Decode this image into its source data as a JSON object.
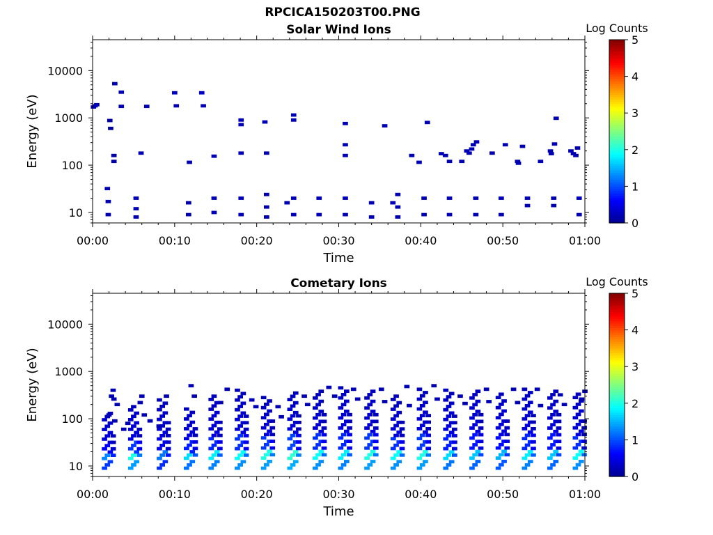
{
  "figure": {
    "filename": "RPCICA150203T00.PNG"
  },
  "colorbar_colors": [
    "#00008f",
    "#0000ff",
    "#0080ff",
    "#00ffff",
    "#80ff80",
    "#ffff00",
    "#ff8000",
    "#ff0000",
    "#800000"
  ],
  "chart_data": [
    {
      "type": "heatmap",
      "title": "Solar Wind Ions",
      "xlabel": "Time",
      "ylabel": "Energy (eV)",
      "xlim_minutes": [
        0,
        60
      ],
      "ylim_eV": [
        6,
        45000
      ],
      "y_scale": "log",
      "x_ticks": [
        {
          "value": 0,
          "label": "00:00"
        },
        {
          "value": 10,
          "label": "00:10"
        },
        {
          "value": 20,
          "label": "00:20"
        },
        {
          "value": 30,
          "label": "00:30"
        },
        {
          "value": 40,
          "label": "00:40"
        },
        {
          "value": 50,
          "label": "00:50"
        },
        {
          "value": 60,
          "label": "01:00"
        }
      ],
      "y_ticks": [
        {
          "value": 10,
          "label": "10"
        },
        {
          "value": 100,
          "label": "100"
        },
        {
          "value": 1000,
          "label": "1000"
        },
        {
          "value": 10000,
          "label": "10000"
        }
      ],
      "colorbar": {
        "label": "Log Counts",
        "min": 0,
        "max": 5,
        "ticks": [
          "0",
          "1",
          "2",
          "3",
          "4",
          "5"
        ]
      },
      "cells": [
        [
          0.1,
          1700,
          0.2
        ],
        [
          0.3,
          1800,
          0.2
        ],
        [
          0.5,
          1900,
          0.2
        ],
        [
          2.7,
          5300,
          0.2
        ],
        [
          3.5,
          3500,
          0.2
        ],
        [
          3.5,
          1750,
          0.2
        ],
        [
          6.6,
          1750,
          0.2
        ],
        [
          10.0,
          3400,
          0.3
        ],
        [
          10.2,
          1800,
          0.2
        ],
        [
          13.3,
          3400,
          0.3
        ],
        [
          13.5,
          1800,
          0.2
        ],
        [
          2.1,
          880,
          0.1
        ],
        [
          2.2,
          600,
          0.1
        ],
        [
          2.6,
          160,
          0.1
        ],
        [
          2.6,
          120,
          0.1
        ],
        [
          5.9,
          180,
          0.2
        ],
        [
          11.8,
          115,
          0.2
        ],
        [
          14.8,
          155,
          0.2
        ],
        [
          18.1,
          900,
          0.2
        ],
        [
          18.1,
          720,
          0.2
        ],
        [
          18.1,
          180,
          0.2
        ],
        [
          21.0,
          820,
          0.2
        ],
        [
          21.2,
          180,
          0.2
        ],
        [
          24.5,
          1150,
          0.2
        ],
        [
          24.5,
          900,
          0.2
        ],
        [
          30.8,
          760,
          0.2
        ],
        [
          30.8,
          270,
          0.2
        ],
        [
          30.8,
          160,
          0.2
        ],
        [
          35.6,
          680,
          0.2
        ],
        [
          38.9,
          160,
          0.2
        ],
        [
          39.8,
          115,
          0.2
        ],
        [
          40.8,
          800,
          0.2
        ],
        [
          42.5,
          175,
          0.2
        ],
        [
          43.0,
          160,
          0.2
        ],
        [
          43.5,
          120,
          0.2
        ],
        [
          45.0,
          120,
          0.2
        ],
        [
          45.6,
          200,
          0.2
        ],
        [
          45.9,
          180,
          0.2
        ],
        [
          46.2,
          220,
          0.2
        ],
        [
          46.4,
          270,
          0.2
        ],
        [
          46.8,
          310,
          0.2
        ],
        [
          48.7,
          180,
          0.2
        ],
        [
          50.3,
          270,
          0.2
        ],
        [
          51.8,
          120,
          0.2
        ],
        [
          51.9,
          110,
          0.2
        ],
        [
          52.4,
          250,
          0.2
        ],
        [
          54.6,
          120,
          0.2
        ],
        [
          55.8,
          200,
          0.2
        ],
        [
          55.9,
          175,
          0.2
        ],
        [
          56.3,
          280,
          0.2
        ],
        [
          56.5,
          980,
          0.2
        ],
        [
          58.3,
          200,
          0.2
        ],
        [
          58.6,
          175,
          0.2
        ],
        [
          58.9,
          160,
          0.2
        ],
        [
          59.1,
          230,
          0.2
        ],
        [
          1.8,
          32,
          0.2
        ],
        [
          1.9,
          17,
          0.2
        ],
        [
          1.9,
          9,
          0.2
        ],
        [
          5.3,
          20,
          0.2
        ],
        [
          5.3,
          12,
          0.2
        ],
        [
          5.3,
          8,
          0.2
        ],
        [
          11.7,
          16,
          0.2
        ],
        [
          11.7,
          9,
          0.2
        ],
        [
          14.8,
          20,
          0.2
        ],
        [
          14.8,
          10,
          0.2
        ],
        [
          18.1,
          20,
          0.2
        ],
        [
          18.1,
          9,
          0.2
        ],
        [
          21.2,
          24,
          0.2
        ],
        [
          21.2,
          13,
          0.2
        ],
        [
          21.2,
          8,
          0.2
        ],
        [
          23.7,
          16,
          0.2
        ],
        [
          24.5,
          20,
          0.2
        ],
        [
          24.5,
          9,
          0.2
        ],
        [
          27.6,
          20,
          0.2
        ],
        [
          27.6,
          9,
          0.2
        ],
        [
          30.8,
          20,
          0.2
        ],
        [
          30.8,
          9,
          0.2
        ],
        [
          34.0,
          16,
          0.2
        ],
        [
          34.0,
          8,
          0.2
        ],
        [
          36.6,
          16,
          0.2
        ],
        [
          37.2,
          24,
          0.2
        ],
        [
          37.2,
          13,
          0.2
        ],
        [
          37.2,
          8,
          0.2
        ],
        [
          40.4,
          20,
          0.2
        ],
        [
          40.4,
          9,
          0.2
        ],
        [
          43.5,
          20,
          0.2
        ],
        [
          43.5,
          9,
          0.2
        ],
        [
          46.7,
          20,
          0.2
        ],
        [
          46.7,
          9,
          0.2
        ],
        [
          49.8,
          20,
          0.2
        ],
        [
          49.8,
          9,
          0.2
        ],
        [
          53.0,
          20,
          0.2
        ],
        [
          53.0,
          14,
          0.2
        ],
        [
          56.2,
          20,
          0.2
        ],
        [
          56.2,
          14,
          0.2
        ],
        [
          59.3,
          20,
          0.2
        ],
        [
          59.3,
          9,
          0.2
        ]
      ]
    },
    {
      "type": "heatmap",
      "title": "Cometary Ions",
      "xlabel": "Time",
      "ylabel": "Energy (eV)",
      "xlim_minutes": [
        0,
        60
      ],
      "ylim_eV": [
        6,
        45000
      ],
      "y_scale": "log",
      "x_ticks": [
        {
          "value": 0,
          "label": "00:00"
        },
        {
          "value": 10,
          "label": "00:10"
        },
        {
          "value": 20,
          "label": "00:20"
        },
        {
          "value": 30,
          "label": "00:30"
        },
        {
          "value": 40,
          "label": "00:40"
        },
        {
          "value": 50,
          "label": "00:50"
        },
        {
          "value": 60,
          "label": "01:00"
        }
      ],
      "y_ticks": [
        {
          "value": 10,
          "label": "10"
        },
        {
          "value": 100,
          "label": "100"
        },
        {
          "value": 1000,
          "label": "1000"
        },
        {
          "value": 10000,
          "label": "10000"
        }
      ],
      "colorbar": {
        "label": "Log Counts",
        "min": 0,
        "max": 5,
        "ticks": [
          "0",
          "1",
          "2",
          "3",
          "4",
          "5"
        ]
      },
      "bursts": [
        {
          "t": 1.8,
          "top": 130,
          "peak": 1.3
        },
        {
          "t": 5.0,
          "top": 180,
          "peak": 2.0
        },
        {
          "t": 8.5,
          "top": 250,
          "peak": 1.2
        },
        {
          "t": 11.8,
          "top": 160,
          "peak": 1.7
        },
        {
          "t": 14.8,
          "top": 300,
          "peak": 1.8
        },
        {
          "t": 18.0,
          "top": 400,
          "peak": 1.9
        },
        {
          "t": 21.2,
          "top": 280,
          "peak": 2.0
        },
        {
          "t": 24.4,
          "top": 350,
          "peak": 2.1
        },
        {
          "t": 27.5,
          "top": 380,
          "peak": 1.9
        },
        {
          "t": 30.6,
          "top": 450,
          "peak": 1.8
        },
        {
          "t": 33.8,
          "top": 380,
          "peak": 2.0
        },
        {
          "t": 37.0,
          "top": 300,
          "peak": 1.9
        },
        {
          "t": 40.2,
          "top": 420,
          "peak": 2.0
        },
        {
          "t": 43.4,
          "top": 400,
          "peak": 1.7
        },
        {
          "t": 46.6,
          "top": 380,
          "peak": 1.6
        },
        {
          "t": 49.8,
          "top": 330,
          "peak": 1.5
        },
        {
          "t": 53.0,
          "top": 420,
          "peak": 1.8
        },
        {
          "t": 56.1,
          "top": 380,
          "peak": 1.6
        },
        {
          "t": 59.2,
          "top": 330,
          "peak": 1.9
        }
      ],
      "extra_cells": [
        [
          2.5,
          400,
          0.2
        ],
        [
          2.3,
          300,
          0.2
        ],
        [
          2.6,
          260,
          0.2
        ],
        [
          3.0,
          200,
          0.2
        ],
        [
          2.0,
          120,
          0.2
        ],
        [
          2.7,
          90,
          0.2
        ],
        [
          3.8,
          60,
          0.2
        ],
        [
          4.3,
          80,
          0.2
        ],
        [
          6.0,
          300,
          0.2
        ],
        [
          5.8,
          220,
          0.2
        ],
        [
          6.3,
          120,
          0.2
        ],
        [
          7.0,
          90,
          0.2
        ],
        [
          9.0,
          300,
          0.2
        ],
        [
          8.1,
          70,
          0.2
        ],
        [
          12.0,
          500,
          0.2
        ],
        [
          12.4,
          300,
          0.2
        ],
        [
          16.4,
          420,
          0.2
        ],
        [
          15.6,
          220,
          0.2
        ],
        [
          19.4,
          250,
          0.2
        ],
        [
          19.9,
          180,
          0.2
        ],
        [
          22.6,
          180,
          0.2
        ],
        [
          23.0,
          110,
          0.2
        ],
        [
          25.8,
          300,
          0.2
        ],
        [
          26.2,
          200,
          0.2
        ],
        [
          28.8,
          460,
          0.2
        ],
        [
          29.5,
          300,
          0.2
        ],
        [
          31.8,
          420,
          0.2
        ],
        [
          32.3,
          260,
          0.2
        ],
        [
          35.2,
          420,
          0.2
        ],
        [
          35.6,
          230,
          0.2
        ],
        [
          38.3,
          480,
          0.2
        ],
        [
          38.6,
          190,
          0.2
        ],
        [
          41.6,
          500,
          0.2
        ],
        [
          42.0,
          260,
          0.2
        ],
        [
          44.8,
          300,
          0.2
        ],
        [
          45.4,
          210,
          0.2
        ],
        [
          48.0,
          420,
          0.2
        ],
        [
          48.3,
          230,
          0.2
        ],
        [
          51.3,
          420,
          0.2
        ],
        [
          51.8,
          220,
          0.2
        ],
        [
          54.2,
          420,
          0.2
        ],
        [
          54.6,
          190,
          0.2
        ],
        [
          57.0,
          320,
          0.2
        ],
        [
          57.5,
          200,
          0.2
        ],
        [
          60.0,
          380,
          0.2
        ],
        [
          59.6,
          260,
          0.2
        ]
      ]
    }
  ]
}
